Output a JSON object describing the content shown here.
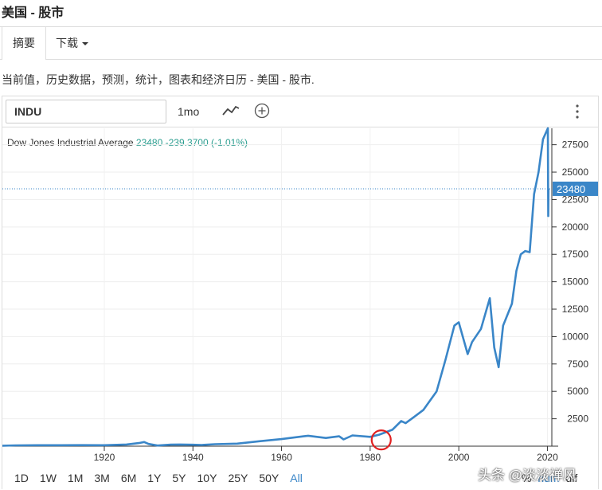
{
  "page": {
    "title": "美国 - 股市"
  },
  "tabs": [
    {
      "label": "摘要"
    },
    {
      "label": "下载"
    }
  ],
  "description": "当前值，历史数据，预测，统计，图表和经济日历 - 美国 - 股市.",
  "toolbar": {
    "symbol": "INDU",
    "interval": "1mo",
    "icons": [
      "line-chart-icon",
      "add-circle-icon",
      "more-vertical-icon"
    ]
  },
  "legend": {
    "name": "Dow Jones Industrial Average",
    "value": "23480",
    "change": "-239.3700 (-1.01%)"
  },
  "ranges": [
    "1D",
    "1W",
    "1M",
    "3M",
    "6M",
    "1Y",
    "5Y",
    "10Y",
    "25Y",
    "50Y",
    "All"
  ],
  "active_range": "All",
  "footer": {
    "pct": "%",
    "num": "num",
    "dif": "dif"
  },
  "watermark": "头条 @淡淡禅风",
  "colors": {
    "line": "#3a86c8",
    "accent": "#3a86c8",
    "change": "#2a9d8f",
    "highlight": "#e02020"
  },
  "chart_data": {
    "type": "line",
    "title": "Dow Jones Industrial Average",
    "xlabel": "",
    "ylabel": "",
    "xlim": [
      1897,
      2021
    ],
    "ylim": [
      0,
      29000
    ],
    "x_ticks": [
      "1920",
      "1940",
      "1960",
      "1980",
      "2000",
      "2020"
    ],
    "y_ticks": [
      "2500",
      "5000",
      "7500",
      "10000",
      "12500",
      "15000",
      "17500",
      "20000",
      "22500",
      "25000",
      "27500"
    ],
    "current_value": "23480",
    "series": [
      {
        "x": [
          1897,
          1900,
          1905,
          1910,
          1915,
          1920,
          1925,
          1928,
          1929,
          1930,
          1932,
          1935,
          1937,
          1940,
          1942,
          1945,
          1950,
          1955,
          1960,
          1965,
          1966,
          1970,
          1973,
          1974,
          1976,
          1980,
          1982,
          1985,
          1987,
          1988,
          1990,
          1992,
          1995,
          1997,
          1999,
          2000,
          2002,
          2003,
          2005,
          2007,
          2008,
          2009,
          2010,
          2012,
          2013,
          2014,
          2015,
          2016,
          2017,
          2018,
          2019,
          2020.1,
          2020.2,
          2020.25
        ],
        "y": [
          45,
          70,
          90,
          85,
          95,
          90,
          150,
          300,
          380,
          200,
          60,
          140,
          150,
          130,
          110,
          180,
          230,
          450,
          650,
          900,
          950,
          750,
          900,
          620,
          980,
          850,
          1050,
          1500,
          2300,
          2100,
          2700,
          3300,
          5000,
          7900,
          11000,
          11300,
          8400,
          9500,
          10700,
          13500,
          9000,
          7200,
          11000,
          13000,
          16000,
          17500,
          17800,
          17700,
          23000,
          25000,
          28000,
          29000,
          21000,
          23480
        ]
      }
    ],
    "annotations": [
      "red circle around 1982"
    ]
  }
}
